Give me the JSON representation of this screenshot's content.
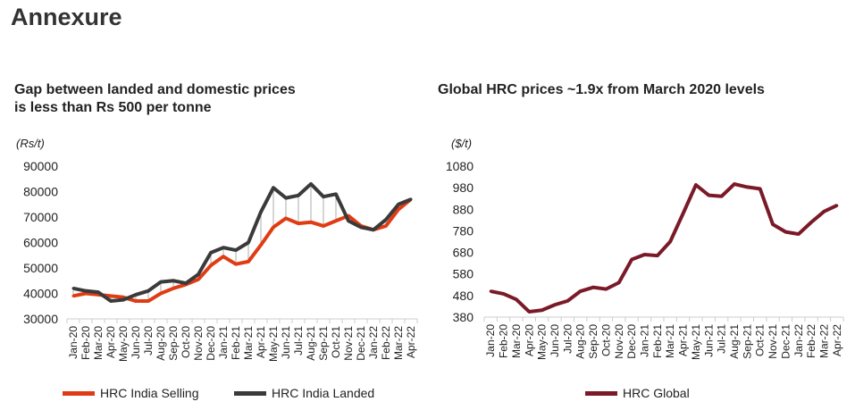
{
  "heading": "Annexure",
  "colors": {
    "selling": "#e03c14",
    "landed": "#3a3a3a",
    "global": "#7a1a28"
  },
  "chart_data": [
    {
      "type": "line",
      "title": "Gap between landed and domestic prices is less than Rs 500 per tonne",
      "title_lines": [
        "Gap between landed and domestic prices",
        "is less than Rs 500 per tonne"
      ],
      "ylabel": "(Rs/t)",
      "ylim": [
        30000,
        90000
      ],
      "yticks": [
        30000,
        40000,
        50000,
        60000,
        70000,
        80000,
        90000
      ],
      "legend": "bottom",
      "categories": [
        "Jan-20",
        "Feb-20",
        "Mar-20",
        "Apr-20",
        "May-20",
        "Jun-20",
        "Jul-20",
        "Aug-20",
        "Sep-20",
        "Oct-20",
        "Nov-20",
        "Dec-20",
        "Jan-21",
        "Feb-21",
        "Mar-21",
        "Apr-21",
        "May-21",
        "Jun-21",
        "Jul-21",
        "Aug-21",
        "Sep-21",
        "Oct-21",
        "Nov-21",
        "Dec-21",
        "Jan-22",
        "Feb-22",
        "Mar-22",
        "Apr-22"
      ],
      "series": [
        {
          "name": "HRC India Selling",
          "values": [
            39000,
            40000,
            39500,
            39000,
            38500,
            37000,
            37000,
            40000,
            42000,
            43500,
            45500,
            51000,
            54500,
            51500,
            52500,
            59000,
            66000,
            69500,
            67500,
            68000,
            66500,
            68500,
            70500,
            66500,
            65000,
            66500,
            73000,
            77000
          ]
        },
        {
          "name": "HRC India Landed",
          "values": [
            42000,
            41000,
            40500,
            37000,
            37500,
            39500,
            41000,
            44500,
            45000,
            44000,
            47500,
            56000,
            58000,
            57000,
            60000,
            72000,
            81500,
            77500,
            78500,
            83000,
            78000,
            79000,
            68500,
            66000,
            65000,
            69000,
            75000,
            77000
          ]
        }
      ]
    },
    {
      "type": "line",
      "title": "Global HRC prices ~1.9x from March 2020 levels",
      "title_lines": [
        "Global HRC prices ~1.9x from March 2020 levels"
      ],
      "ylabel": "($/t)",
      "ylim": [
        380,
        1080
      ],
      "yticks": [
        380,
        480,
        580,
        680,
        780,
        880,
        980,
        1080
      ],
      "legend": "bottom",
      "categories": [
        "Jan-20",
        "Feb-20",
        "Mar-20",
        "Apr-20",
        "May-20",
        "Jun-20",
        "Jul-20",
        "Aug-20",
        "Sep-20",
        "Oct-20",
        "Nov-20",
        "Dec-20",
        "Jan-21",
        "Feb-21",
        "Mar-21",
        "Apr-21",
        "May-21",
        "Jun-21",
        "Jul-21",
        "Aug-21",
        "Sep-21",
        "Oct-21",
        "Nov-21",
        "Dec-21",
        "Jan-22",
        "Feb-22",
        "Mar-22",
        "Apr-22"
      ],
      "series": [
        {
          "name": "HRC Global",
          "values": [
            500,
            488,
            462,
            405,
            412,
            437,
            455,
            500,
            518,
            510,
            540,
            647,
            670,
            665,
            730,
            860,
            993,
            945,
            940,
            997,
            983,
            975,
            810,
            775,
            765,
            820,
            870,
            898
          ]
        }
      ]
    }
  ]
}
